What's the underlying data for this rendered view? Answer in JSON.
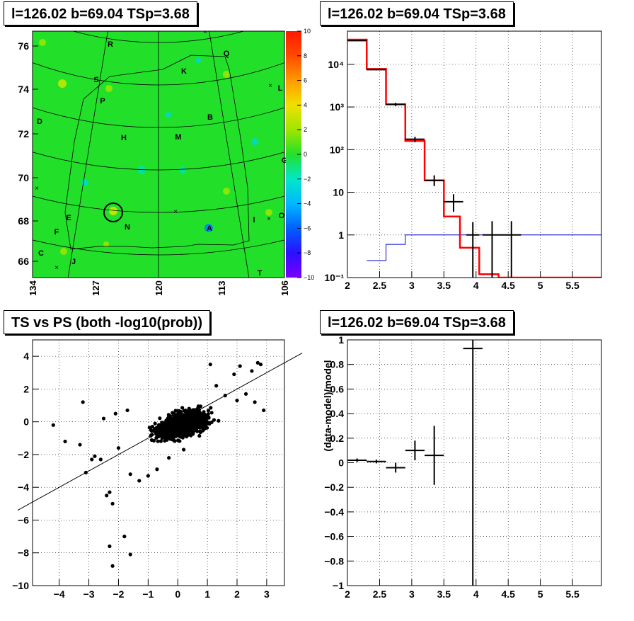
{
  "panels": {
    "map_title": "l=126.02 b=69.04 TSp=3.68",
    "spectrum_title": "l=126.02 b=69.04 TSp=3.68",
    "scatter_title": "TS vs PS (both -log10(prob))",
    "residual_title": "l=126.02 b=69.04 TSp=3.68"
  },
  "colors": {
    "data": "#000000",
    "model": "#ff0000",
    "exposure": "#0000cc",
    "map_bg": "#22e02a"
  },
  "chart_data": [
    {
      "type": "heatmap",
      "title": "l=126.02 b=69.04 TSp=3.68",
      "xticks": [
        "134",
        "127",
        "120",
        "113",
        "106"
      ],
      "yticks": [
        "76",
        "74",
        "72",
        "70",
        "68",
        "66"
      ],
      "colorbar_ticks": [
        "10",
        "8",
        "6",
        "4",
        "2",
        "0",
        "−2",
        "−4",
        "−6",
        "−8",
        "−10"
      ],
      "zlim": [
        -10,
        10
      ],
      "region_labels": [
        "R",
        "Q",
        "K",
        "S",
        "L",
        "P",
        "D",
        "B",
        "H",
        "M",
        "G",
        "E",
        "N",
        "I",
        "O",
        "F",
        "A",
        "C",
        "J",
        "T"
      ]
    },
    {
      "type": "line",
      "title": "l=126.02 b=69.04 TSp=3.68",
      "log_y": true,
      "xlim": [
        2,
        5.95
      ],
      "ylim": [
        0.1,
        60000
      ],
      "grid": true,
      "xticks": [
        "2",
        "2.5",
        "3",
        "3.5",
        "4",
        "4.5",
        "5",
        "5.5"
      ],
      "yticks": [
        "10⁻¹",
        "1",
        "10",
        "10²",
        "10³",
        "10⁴"
      ],
      "model_steps": {
        "edges": [
          2.0,
          2.3,
          2.6,
          2.9,
          3.2,
          3.5,
          3.75,
          4.05,
          4.35,
          5.95
        ],
        "values": [
          38000,
          7800,
          1150,
          160,
          19,
          2.7,
          0.5,
          0.12,
          0.1
        ]
      },
      "exposure_steps": {
        "edges": [
          2.3,
          2.6,
          2.9,
          5.95
        ],
        "values": [
          0.25,
          0.6,
          1.0
        ]
      },
      "data_points": [
        {
          "x": 2.15,
          "xerr": 0.15,
          "y": 36000,
          "ylo": 35000,
          "yhi": 37000
        },
        {
          "x": 2.45,
          "xerr": 0.15,
          "y": 7500,
          "ylo": 7200,
          "yhi": 7800
        },
        {
          "x": 2.75,
          "xerr": 0.15,
          "y": 1150,
          "ylo": 1050,
          "yhi": 1250
        },
        {
          "x": 3.05,
          "xerr": 0.15,
          "y": 175,
          "ylo": 150,
          "yhi": 200
        },
        {
          "x": 3.35,
          "xerr": 0.15,
          "y": 19,
          "ylo": 14,
          "yhi": 25
        },
        {
          "x": 3.65,
          "xerr": 0.15,
          "y": 6,
          "ylo": 3.5,
          "yhi": 9
        },
        {
          "x": 3.95,
          "xerr": 0.1,
          "y": 1.0,
          "ylo": 0.1,
          "yhi": 2.0
        },
        {
          "x": 4.25,
          "xerr": 0.15,
          "y": 1.0,
          "ylo": 0.1,
          "yhi": 2.1
        },
        {
          "x": 4.55,
          "xerr": 0.15,
          "y": 1.0,
          "ylo": 0.1,
          "yhi": 2.1
        }
      ]
    },
    {
      "type": "scatter",
      "title": "TS vs PS (both -log10(prob))",
      "xlim": [
        -4.9,
        3.6
      ],
      "ylim": [
        -10,
        5
      ],
      "grid": true,
      "xticks": [
        "−4",
        "−3",
        "−2",
        "−1",
        "0",
        "1",
        "2",
        "3"
      ],
      "yticks": [
        "4",
        "2",
        "0",
        "−2",
        "−4",
        "−6",
        "−8",
        "−10"
      ],
      "reference_line": {
        "slope": 1,
        "intercept": 0
      },
      "points": [
        [
          -4.2,
          -0.2
        ],
        [
          -3.2,
          1.2
        ],
        [
          -2.3,
          -7.6
        ],
        [
          -1.8,
          -7.0
        ],
        [
          -2.2,
          -8.8
        ],
        [
          -1.6,
          -8.1
        ],
        [
          -2.4,
          -4.5
        ],
        [
          -2.2,
          -5.0
        ],
        [
          -3.8,
          -1.2
        ],
        [
          -3.3,
          -1.4
        ],
        [
          -2.9,
          -2.3
        ],
        [
          -3.1,
          -3.1
        ],
        [
          -2.8,
          -2.1
        ],
        [
          -2.5,
          0.2
        ],
        [
          -2.1,
          0.5
        ],
        [
          -1.7,
          0.7
        ],
        [
          -1.3,
          -3.6
        ],
        [
          -1.6,
          -3.2
        ],
        [
          -1.0,
          -3.3
        ],
        [
          -0.7,
          -2.9
        ],
        [
          -2.6,
          -2.3
        ],
        [
          -2.0,
          -1.6
        ],
        [
          -2.3,
          -4.3
        ],
        [
          2.1,
          3.4
        ],
        [
          2.7,
          3.6
        ],
        [
          2.5,
          3.1
        ],
        [
          2.8,
          3.5
        ],
        [
          2.3,
          1.7
        ],
        [
          2.6,
          1.2
        ],
        [
          2.9,
          0.7
        ],
        [
          1.9,
          2.9
        ],
        [
          2.0,
          1.3
        ],
        [
          1.6,
          1.6
        ],
        [
          1.1,
          3.5
        ],
        [
          1.3,
          2.2
        ],
        [
          -0.3,
          -2.2
        ],
        [
          0.2,
          -1.7
        ]
      ]
    },
    {
      "type": "line",
      "title": "l=126.02 b=69.04 TSp=3.68",
      "ylabel": "(data-model)/model",
      "xlim": [
        2,
        5.95
      ],
      "ylim": [
        -1,
        1
      ],
      "grid": true,
      "xticks": [
        "2",
        "2.5",
        "3",
        "3.5",
        "4",
        "4.5",
        "5",
        "5.5"
      ],
      "yticks": [
        "1",
        "0.8",
        "0.6",
        "0.4",
        "0.2",
        "0",
        "−0.2",
        "−0.4",
        "−0.6",
        "−0.8",
        "−1"
      ],
      "points": [
        {
          "x": 2.15,
          "xerr": 0.15,
          "y": 0.02,
          "ylo": 0.005,
          "yhi": 0.035
        },
        {
          "x": 2.45,
          "xerr": 0.15,
          "y": 0.01,
          "ylo": -0.005,
          "yhi": 0.025
        },
        {
          "x": 2.75,
          "xerr": 0.15,
          "y": -0.04,
          "ylo": -0.08,
          "yhi": 0.0
        },
        {
          "x": 3.05,
          "xerr": 0.15,
          "y": 0.1,
          "ylo": 0.02,
          "yhi": 0.18
        },
        {
          "x": 3.35,
          "xerr": 0.15,
          "y": 0.06,
          "ylo": -0.18,
          "yhi": 0.3
        },
        {
          "x": 3.95,
          "xerr": 0.15,
          "y": 0.93,
          "ylo": -1.0,
          "yhi": 1.0
        }
      ]
    }
  ]
}
